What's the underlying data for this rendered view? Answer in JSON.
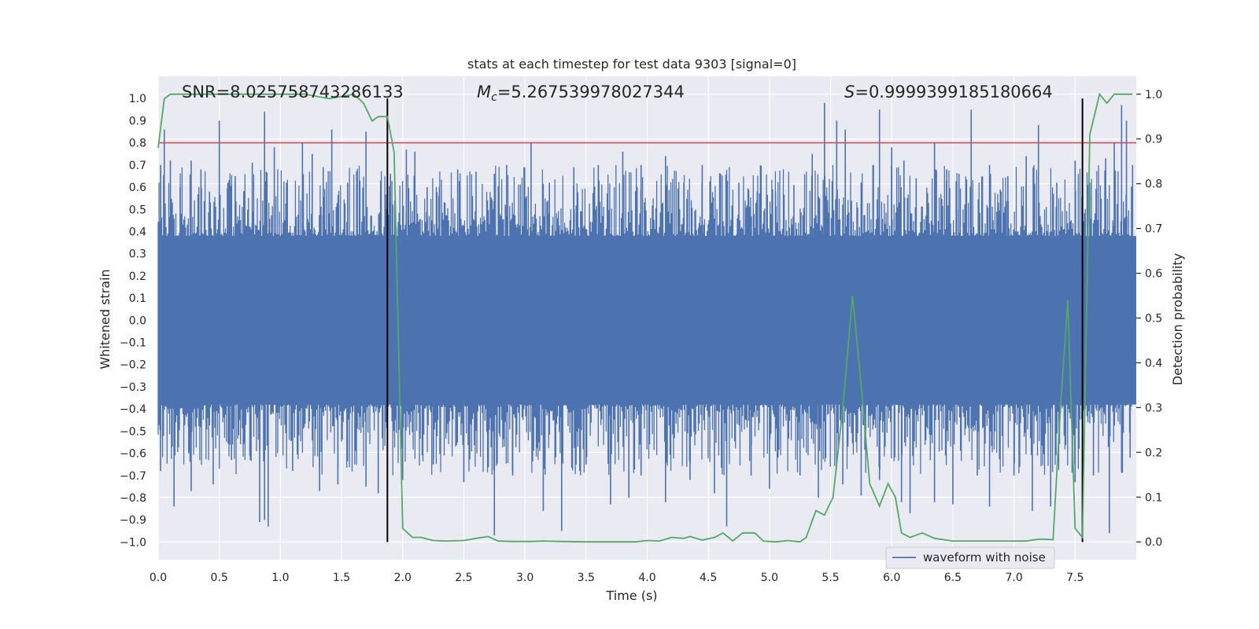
{
  "chart_data": {
    "type": "line",
    "title": "stats at each timestep for test data 9303 [signal=0]",
    "xlabel": "Time (s)",
    "ylabel": "Whitened strain",
    "ylabel_right": "Detection probability",
    "xlim": [
      0.0,
      8.0
    ],
    "ylim": [
      -1.08,
      1.1
    ],
    "ylim_right": [
      -0.04,
      1.04
    ],
    "x_ticks": [
      0.0,
      0.5,
      1.0,
      1.5,
      2.0,
      2.5,
      3.0,
      3.5,
      4.0,
      4.5,
      5.0,
      5.5,
      6.0,
      6.5,
      7.0,
      7.5
    ],
    "x_tick_labels": [
      "0.0",
      "0.5",
      "1.0",
      "1.5",
      "2.0",
      "2.5",
      "3.0",
      "3.5",
      "4.0",
      "4.5",
      "5.0",
      "5.5",
      "6.0",
      "6.5",
      "7.0",
      "7.5"
    ],
    "y_ticks": [
      -1.0,
      -0.9,
      -0.8,
      -0.7,
      -0.6,
      -0.5,
      -0.4,
      -0.3,
      -0.2,
      -0.1,
      0.0,
      0.1,
      0.2,
      0.3,
      0.4,
      0.5,
      0.6,
      0.7,
      0.8,
      0.9,
      1.0
    ],
    "y_tick_labels": [
      "−1.0",
      "−0.9",
      "−0.8",
      "−0.7",
      "−0.6",
      "−0.5",
      "−0.4",
      "−0.3",
      "−0.2",
      "−0.1",
      "0.0",
      "0.1",
      "0.2",
      "0.3",
      "0.4",
      "0.5",
      "0.6",
      "0.7",
      "0.8",
      "0.9",
      "1.0"
    ],
    "y_right_ticks": [
      0.0,
      0.1,
      0.2,
      0.3,
      0.4,
      0.5,
      0.6,
      0.7,
      0.8,
      0.9,
      1.0
    ],
    "y_right_tick_labels": [
      "0.0",
      "0.1",
      "0.2",
      "0.3",
      "0.4",
      "0.5",
      "0.6",
      "0.7",
      "0.8",
      "0.9",
      "1.0"
    ],
    "annotations": {
      "snr": "SNR=8.025758743286133",
      "mc_symbol": "M",
      "mc_sub": "c",
      "mc_value": "=5.267539978027344",
      "s_symbol": "S",
      "s_value": "=0.9999399185180664"
    },
    "threshold": {
      "value": 0.8,
      "color": "#c44e52"
    },
    "vertical_lines": [
      1.875,
      7.56
    ],
    "waveform": {
      "name": "waveform with noise",
      "color": "#4c72b0",
      "envelope_max": 0.38,
      "spikes": [
        [
          0.05,
          0.86
        ],
        [
          0.02,
          0.7
        ],
        [
          0.1,
          0.72
        ],
        [
          0.18,
          0.6
        ],
        [
          0.27,
          0.72
        ],
        [
          0.35,
          0.68
        ],
        [
          0.42,
          0.58
        ],
        [
          0.5,
          0.9
        ],
        [
          0.57,
          0.62
        ],
        [
          0.63,
          0.65
        ],
        [
          0.7,
          0.58
        ],
        [
          0.77,
          0.71
        ],
        [
          0.87,
          0.94
        ],
        [
          0.95,
          0.78
        ],
        [
          1.05,
          0.62
        ],
        [
          1.18,
          0.8
        ],
        [
          1.26,
          0.75
        ],
        [
          1.35,
          0.69
        ],
        [
          1.42,
          0.86
        ],
        [
          1.55,
          0.62
        ],
        [
          1.65,
          0.63
        ],
        [
          1.7,
          0.85
        ],
        [
          1.82,
          0.63
        ],
        [
          1.9,
          0.66
        ],
        [
          2.03,
          0.77
        ],
        [
          2.1,
          0.76
        ],
        [
          2.2,
          0.6
        ],
        [
          2.3,
          0.6
        ],
        [
          2.45,
          0.68
        ],
        [
          2.6,
          0.67
        ],
        [
          2.75,
          0.66
        ],
        [
          2.85,
          0.7
        ],
        [
          3.05,
          0.8
        ],
        [
          3.2,
          0.62
        ],
        [
          3.4,
          0.69
        ],
        [
          3.6,
          0.7
        ],
        [
          3.8,
          0.76
        ],
        [
          3.95,
          0.7
        ],
        [
          4.15,
          0.74
        ],
        [
          4.3,
          0.62
        ],
        [
          4.45,
          0.7
        ],
        [
          4.6,
          0.66
        ],
        [
          4.75,
          0.62
        ],
        [
          4.9,
          0.58
        ],
        [
          5.05,
          0.58
        ],
        [
          5.2,
          0.61
        ],
        [
          5.35,
          0.75
        ],
        [
          5.45,
          0.98
        ],
        [
          5.55,
          0.9
        ],
        [
          5.62,
          0.86
        ],
        [
          5.75,
          0.62
        ],
        [
          5.85,
          0.7
        ],
        [
          5.9,
          0.95
        ],
        [
          6.0,
          0.78
        ],
        [
          6.1,
          0.72
        ],
        [
          6.2,
          0.64
        ],
        [
          6.35,
          0.8
        ],
        [
          6.45,
          0.68
        ],
        [
          6.55,
          0.66
        ],
        [
          6.65,
          0.95
        ],
        [
          6.8,
          0.7
        ],
        [
          6.95,
          0.65
        ],
        [
          7.1,
          0.74
        ],
        [
          7.2,
          0.88
        ],
        [
          7.35,
          0.62
        ],
        [
          7.5,
          0.72
        ],
        [
          7.62,
          0.62
        ],
        [
          7.75,
          0.73
        ],
        [
          7.82,
          0.8
        ],
        [
          7.88,
          0.97
        ],
        [
          7.92,
          0.9
        ],
        [
          7.97,
          0.7
        ]
      ],
      "neg_spikes": [
        [
          0.02,
          -0.68
        ],
        [
          0.13,
          -0.84
        ],
        [
          0.25,
          -0.6
        ],
        [
          0.27,
          -0.77
        ],
        [
          0.45,
          -0.74
        ],
        [
          0.6,
          -0.63
        ],
        [
          0.75,
          -0.61
        ],
        [
          0.83,
          -0.91
        ],
        [
          0.87,
          -0.9
        ],
        [
          0.9,
          -0.93
        ],
        [
          1.1,
          -0.68
        ],
        [
          1.32,
          -0.77
        ],
        [
          1.47,
          -0.74
        ],
        [
          1.7,
          -0.75
        ],
        [
          1.8,
          -0.78
        ],
        [
          2.0,
          -0.72
        ],
        [
          2.25,
          -0.65
        ],
        [
          2.5,
          -0.73
        ],
        [
          2.75,
          -0.97
        ],
        [
          2.9,
          -0.7
        ],
        [
          3.15,
          -0.86
        ],
        [
          3.3,
          -0.95
        ],
        [
          3.5,
          -0.65
        ],
        [
          3.7,
          -0.83
        ],
        [
          3.85,
          -0.8
        ],
        [
          3.95,
          -0.7
        ],
        [
          4.15,
          -0.82
        ],
        [
          4.35,
          -0.72
        ],
        [
          4.55,
          -0.78
        ],
        [
          4.65,
          -0.93
        ],
        [
          4.85,
          -0.7
        ],
        [
          5.0,
          -0.76
        ],
        [
          5.25,
          -0.7
        ],
        [
          5.4,
          -0.8
        ],
        [
          5.6,
          -0.74
        ],
        [
          5.75,
          -0.79
        ],
        [
          5.9,
          -0.72
        ],
        [
          6.08,
          -0.82
        ],
        [
          6.15,
          -0.87
        ],
        [
          6.35,
          -0.82
        ],
        [
          6.5,
          -0.83
        ],
        [
          6.7,
          -0.7
        ],
        [
          6.8,
          -0.84
        ],
        [
          7.0,
          -0.7
        ],
        [
          7.15,
          -0.86
        ],
        [
          7.3,
          -0.84
        ],
        [
          7.5,
          -0.73
        ],
        [
          7.65,
          -0.7
        ],
        [
          7.78,
          -0.96
        ],
        [
          7.88,
          -0.68
        ],
        [
          7.95,
          -0.62
        ]
      ]
    },
    "probability": {
      "color": "#55a868",
      "x": [
        0.0,
        0.05,
        0.1,
        0.2,
        0.4,
        0.6,
        0.8,
        1.0,
        1.2,
        1.4,
        1.6,
        1.68,
        1.75,
        1.8,
        1.875,
        1.93,
        2.0,
        2.08,
        2.15,
        2.25,
        2.35,
        2.5,
        2.6,
        2.7,
        2.78,
        2.9,
        3.05,
        3.15,
        3.3,
        3.5,
        3.7,
        3.9,
        4.0,
        4.1,
        4.2,
        4.3,
        4.35,
        4.45,
        4.55,
        4.62,
        4.7,
        4.78,
        4.82,
        4.88,
        4.95,
        5.05,
        5.15,
        5.25,
        5.3,
        5.38,
        5.45,
        5.52,
        5.6,
        5.68,
        5.75,
        5.82,
        5.9,
        5.97,
        6.03,
        6.08,
        6.15,
        6.25,
        6.35,
        6.5,
        6.7,
        6.9,
        7.1,
        7.2,
        7.25,
        7.32,
        7.38,
        7.44,
        7.5,
        7.56,
        7.62,
        7.7,
        7.76,
        7.82,
        7.9,
        7.97
      ],
      "values": [
        0.88,
        0.99,
        1.0,
        1.0,
        1.0,
        1.0,
        1.0,
        1.0,
        1.0,
        0.99,
        1.0,
        0.98,
        0.94,
        0.95,
        0.95,
        0.87,
        0.03,
        0.01,
        0.01,
        0.003,
        0.002,
        0.003,
        0.008,
        0.012,
        0.002,
        0.001,
        0.001,
        0.002,
        0.001,
        0.0,
        0.0,
        0.0,
        0.003,
        0.002,
        0.01,
        0.008,
        0.012,
        0.004,
        0.01,
        0.02,
        0.002,
        0.02,
        0.02,
        0.02,
        0.002,
        0.0,
        0.003,
        0.0,
        0.01,
        0.07,
        0.06,
        0.1,
        0.3,
        0.55,
        0.35,
        0.13,
        0.08,
        0.13,
        0.1,
        0.02,
        0.01,
        0.02,
        0.008,
        0.002,
        0.002,
        0.002,
        0.002,
        0.006,
        0.006,
        0.005,
        0.3,
        0.54,
        0.03,
        0.01,
        0.91,
        1.0,
        0.98,
        1.0,
        1.0,
        1.0
      ]
    },
    "legend": {
      "position": "lower-right",
      "entries": [
        "waveform with noise"
      ]
    }
  }
}
